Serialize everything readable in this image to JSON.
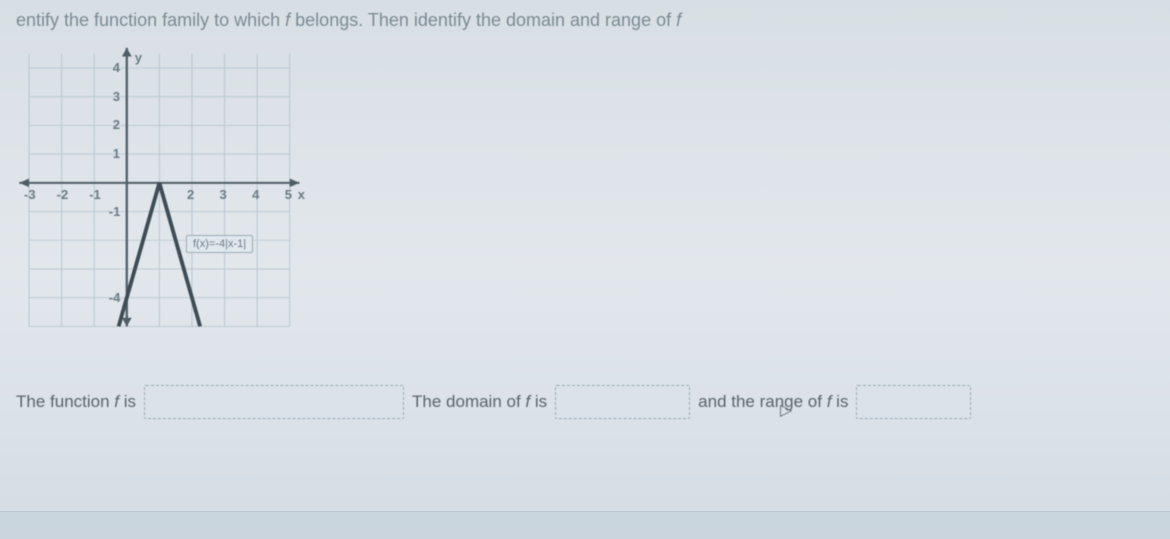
{
  "question": {
    "prefix": "entify the function family to which ",
    "fnSymbol": "f",
    "middle": " belongs. Then identify the domain and range of ",
    "fnSymbol2": "f"
  },
  "graph": {
    "xLabel": "x",
    "yLabel": "y",
    "xTicks": [
      "-3",
      "-2",
      "-1",
      "2",
      "3",
      "4",
      "5"
    ],
    "yTicksPos": [
      "1",
      "2",
      "3",
      "4"
    ],
    "yTicksNeg": [
      "-1",
      "-4"
    ],
    "xMin": -3,
    "xMax": 5,
    "yMin": -5,
    "yMax": 4.5,
    "gridColor": "#b8c6d0",
    "axisColor": "#4e5d66",
    "curveColor": "#3d4c55",
    "formula": "f(x)=-4|x-1|",
    "points": [
      {
        "x": -0.25,
        "y": -5
      },
      {
        "x": 1,
        "y": 0
      },
      {
        "x": 2.25,
        "y": -5
      }
    ]
  },
  "cursor": {
    "glyph": "▷"
  },
  "answers": {
    "label1_pre": "The function ",
    "label1_fn": "f",
    "label1_post": " is",
    "label2_pre": "The domain of ",
    "label2_fn": "f",
    "label2_post": " is",
    "label3_pre": "and the range of ",
    "label3_fn": "f",
    "label3_post": " is"
  }
}
